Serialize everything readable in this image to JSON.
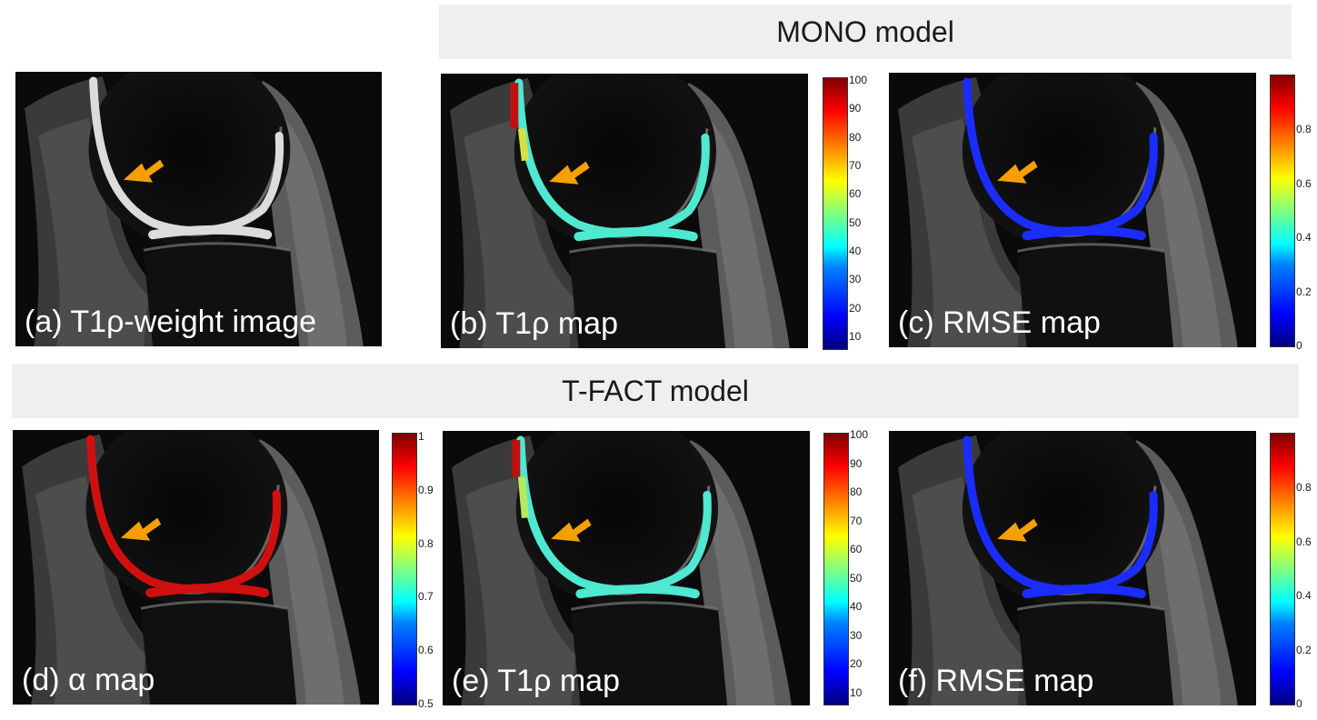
{
  "banners": {
    "mono": "MONO model",
    "tfact": "T-FACT model"
  },
  "panels": {
    "a": "(a) T1ρ-weight image",
    "b": "(b) T1ρ map",
    "c": "(c) RMSE map",
    "d": "(d) α map",
    "e": "(e) T1ρ map",
    "f": "(f) RMSE map"
  },
  "colorbars": {
    "t1rho": [
      "100",
      "90",
      "80",
      "70",
      "60",
      "50",
      "40",
      "30",
      "20",
      "10"
    ],
    "rmse": [
      "0.8",
      "0.6",
      "0.4",
      "0.2",
      "0"
    ],
    "alpha": [
      "1",
      "0.9",
      "0.8",
      "0.7",
      "0.6",
      "0.5"
    ]
  },
  "colors": {
    "arrow": "#f5a000",
    "cartilage_t1rho": "#4fe8d0",
    "cartilage_rmse": "#1a2cff",
    "cartilage_alpha": "#d01010",
    "cartilage_weight": "#e8e8e8"
  }
}
